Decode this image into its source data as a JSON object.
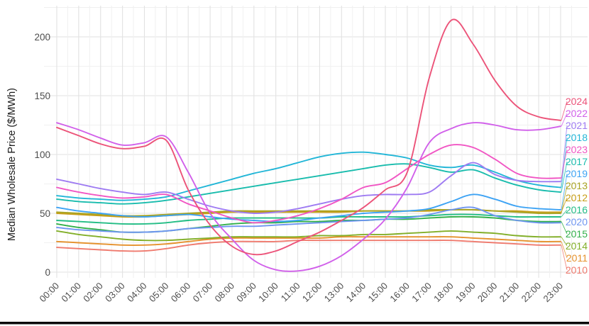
{
  "chart_data": {
    "type": "line",
    "title": "",
    "xlabel": "",
    "ylabel": "Median Wholesale Price ($/MWh)",
    "x": [
      "00:00",
      "01:00",
      "02:00",
      "03:00",
      "04:00",
      "05:00",
      "06:00",
      "07:00",
      "08:00",
      "09:00",
      "10:00",
      "11:00",
      "12:00",
      "13:00",
      "14:00",
      "15:00",
      "16:00",
      "17:00",
      "18:00",
      "19:00",
      "20:00",
      "21:00",
      "22:00",
      "23:00"
    ],
    "yticks": [
      0,
      50,
      100,
      150,
      200
    ],
    "ylim": [
      0,
      225
    ],
    "grid": "major and minor gridlines, light gray on white",
    "legend_position": "direct labels at right edge with leader segments",
    "legend_order_top_to_bottom": [
      "2024",
      "2022",
      "2021",
      "2018",
      "2023",
      "2017",
      "2019",
      "2013",
      "2012",
      "2016",
      "2020",
      "2015",
      "2014",
      "2011",
      "2010"
    ],
    "series": [
      {
        "name": "2010",
        "color": "#ef7a6e",
        "values": [
          21,
          20,
          19,
          18,
          18,
          20,
          23,
          25,
          26,
          26,
          26,
          27,
          27,
          27,
          27,
          27,
          27,
          27,
          27,
          26,
          25,
          24,
          23,
          23
        ]
      },
      {
        "name": "2011",
        "color": "#e5912c",
        "values": [
          26,
          25,
          24,
          23,
          23,
          24,
          26,
          28,
          29,
          29,
          29,
          29,
          29,
          30,
          30,
          30,
          30,
          30,
          30,
          29,
          28,
          27,
          26,
          26
        ]
      },
      {
        "name": "2012",
        "color": "#c79d16",
        "values": [
          50,
          49,
          48,
          47,
          47,
          48,
          49,
          50,
          51,
          51,
          51,
          51,
          51,
          51,
          52,
          52,
          52,
          52,
          53,
          53,
          52,
          52,
          51,
          51
        ]
      },
      {
        "name": "2013",
        "color": "#a9a424",
        "values": [
          51,
          50,
          49,
          48,
          48,
          49,
          50,
          51,
          52,
          52,
          52,
          52,
          52,
          52,
          52,
          52,
          52,
          53,
          53,
          53,
          52,
          51,
          50,
          50
        ]
      },
      {
        "name": "2014",
        "color": "#82af29",
        "values": [
          35,
          32,
          30,
          28,
          27,
          27,
          28,
          29,
          30,
          30,
          30,
          30,
          31,
          31,
          32,
          32,
          33,
          34,
          35,
          34,
          33,
          31,
          30,
          30
        ]
      },
      {
        "name": "2015",
        "color": "#33b04a",
        "values": [
          41,
          38,
          36,
          34,
          34,
          35,
          37,
          39,
          41,
          42,
          42,
          43,
          43,
          44,
          44,
          45,
          45,
          46,
          47,
          47,
          46,
          44,
          43,
          43
        ]
      },
      {
        "name": "2016",
        "color": "#23bd85",
        "values": [
          44,
          43,
          42,
          41,
          41,
          42,
          44,
          45,
          46,
          46,
          46,
          46,
          46,
          47,
          47,
          47,
          47,
          48,
          49,
          49,
          48,
          47,
          47,
          47
        ]
      },
      {
        "name": "2017",
        "color": "#19bcad",
        "values": [
          62,
          60,
          59,
          58,
          59,
          61,
          64,
          67,
          70,
          73,
          76,
          79,
          82,
          85,
          88,
          91,
          92,
          89,
          85,
          87,
          80,
          74,
          70,
          68
        ]
      },
      {
        "name": "2018",
        "color": "#22b6d7",
        "values": [
          65,
          63,
          62,
          61,
          62,
          64,
          69,
          74,
          79,
          84,
          88,
          93,
          98,
          101,
          102,
          100,
          97,
          91,
          89,
          91,
          85,
          78,
          74,
          72
        ]
      },
      {
        "name": "2019",
        "color": "#3da3f4",
        "values": [
          55,
          52,
          50,
          48,
          47,
          48,
          49,
          47,
          45,
          44,
          43,
          44,
          46,
          48,
          50,
          51,
          52,
          54,
          60,
          66,
          62,
          56,
          54,
          53
        ]
      },
      {
        "name": "2020",
        "color": "#6e95f1",
        "values": [
          38,
          36,
          35,
          34,
          34,
          35,
          37,
          38,
          39,
          39,
          40,
          41,
          42,
          43,
          44,
          45,
          46,
          49,
          53,
          55,
          48,
          44,
          42,
          42
        ]
      },
      {
        "name": "2021",
        "color": "#9e7bf2",
        "values": [
          79,
          75,
          71,
          68,
          66,
          68,
          62,
          56,
          52,
          50,
          51,
          54,
          58,
          62,
          65,
          66,
          66,
          68,
          82,
          93,
          83,
          78,
          77,
          77
        ]
      },
      {
        "name": "2022",
        "color": "#d160ea",
        "values": [
          127,
          121,
          114,
          108,
          110,
          115,
          85,
          50,
          28,
          10,
          2,
          1,
          5,
          14,
          28,
          45,
          72,
          110,
          122,
          127,
          125,
          121,
          121,
          124
        ]
      },
      {
        "name": "2023",
        "color": "#f156c4",
        "values": [
          72,
          68,
          65,
          63,
          64,
          66,
          58,
          52,
          46,
          42,
          44,
          48,
          54,
          62,
          72,
          76,
          88,
          100,
          108,
          106,
          96,
          84,
          80,
          80
        ]
      },
      {
        "name": "2024",
        "color": "#ec5379",
        "values": [
          123,
          116,
          109,
          105,
          107,
          112,
          70,
          40,
          22,
          15,
          18,
          26,
          34,
          44,
          55,
          70,
          85,
          165,
          214,
          194,
          163,
          141,
          132,
          129
        ]
      }
    ]
  },
  "figure": {
    "ylabel": "Median Wholesale Price ($/MWh)",
    "bottom_bar_color": "#0a0a0a",
    "grid_major_color": "#e2e2e2",
    "grid_minor_color": "#f0f0f0",
    "tick_text_color": "#4d4d4d",
    "axis_title_color": "#1a1a1a"
  }
}
